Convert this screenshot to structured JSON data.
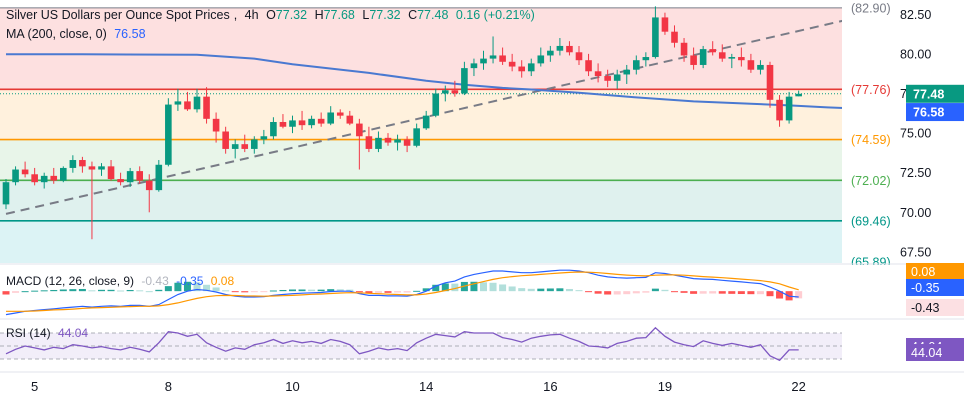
{
  "chart_data": {
    "type": "candlestick",
    "title": "Silver US Dollars per Ounce Spot Prices",
    "timeframe": "4h",
    "ohlc_header": {
      "o_label": "O",
      "o": "77.32",
      "h_label": "H",
      "h": "77.68",
      "l_label": "L",
      "l": "77.32",
      "c_label": "C",
      "c": "77.48",
      "change": "0.16 (+0.21%)"
    },
    "price_axis": {
      "ticks": [
        "82.50",
        "80.00",
        "77.50",
        "75.00",
        "72.50",
        "70.00",
        "67.50"
      ],
      "ylim": [
        66.8,
        83.4
      ]
    },
    "x_ticks": [
      "5",
      "8",
      "10",
      "14",
      "16",
      "19",
      "22"
    ],
    "levels": [
      {
        "label": "(82.90)",
        "value": 82.9,
        "color": "#787b86"
      },
      {
        "label": "(77.76)",
        "value": 77.76,
        "color": "#e53935"
      },
      {
        "label": "(74.59)",
        "value": 74.59,
        "color": "#ff9800"
      },
      {
        "label": "(72.02)",
        "value": 72.02,
        "color": "#4caf50"
      },
      {
        "label": "(69.46)",
        "value": 69.46,
        "color": "#009688"
      },
      {
        "label": "(65.89)",
        "value": 65.89,
        "color": "#009688"
      }
    ],
    "zones": [
      {
        "from": 77.76,
        "to": 82.9,
        "color": "#fde0e0"
      },
      {
        "from": 74.59,
        "to": 77.76,
        "color": "#fff1dd"
      },
      {
        "from": 72.02,
        "to": 74.59,
        "color": "#e8f5e9"
      },
      {
        "from": 69.46,
        "to": 72.02,
        "color": "#dff1ee"
      },
      {
        "from": 65.89,
        "to": 69.46,
        "color": "#dcf3f5"
      }
    ],
    "current_price": {
      "value": 77.48,
      "label": "77.48",
      "color": "#089981"
    },
    "moving_average": {
      "label": "MA (200, close, 0)",
      "value_label": "76.58",
      "value": 76.58,
      "color": "#4a79d1",
      "points": [
        [
          0,
          79.98
        ],
        [
          8,
          79.97
        ],
        [
          20,
          79.95
        ],
        [
          26,
          79.7
        ],
        [
          30,
          79.35
        ],
        [
          38,
          78.8
        ],
        [
          44,
          78.3
        ],
        [
          48,
          78.05
        ],
        [
          52,
          77.85
        ],
        [
          55,
          77.75
        ],
        [
          60,
          77.55
        ],
        [
          66,
          77.25
        ],
        [
          72,
          77.0
        ],
        [
          78,
          76.85
        ],
        [
          82,
          76.75
        ],
        [
          86,
          76.62
        ],
        [
          88,
          76.58
        ]
      ]
    },
    "trendline": {
      "color": "#787b86",
      "points": [
        [
          0,
          69.9
        ],
        [
          92,
          82.7
        ]
      ]
    },
    "candles": [
      [
        70.5,
        72.1,
        70.2,
        71.9
      ],
      [
        71.9,
        72.9,
        71.7,
        72.7
      ],
      [
        72.7,
        73.2,
        72.2,
        72.4
      ],
      [
        72.4,
        72.8,
        71.7,
        71.9
      ],
      [
        71.9,
        72.5,
        71.5,
        72.3
      ],
      [
        72.3,
        72.8,
        71.8,
        72.0
      ],
      [
        72.0,
        72.9,
        71.9,
        72.8
      ],
      [
        72.8,
        73.6,
        72.5,
        73.3
      ],
      [
        73.3,
        73.5,
        72.5,
        72.9
      ],
      [
        72.9,
        73.2,
        68.3,
        72.7
      ],
      [
        72.7,
        73.1,
        72.3,
        72.9
      ],
      [
        72.9,
        73.3,
        72.0,
        72.1
      ],
      [
        72.1,
        72.5,
        71.7,
        71.9
      ],
      [
        71.9,
        72.8,
        71.6,
        72.6
      ],
      [
        72.6,
        72.9,
        71.8,
        72.0
      ],
      [
        72.0,
        72.4,
        70.0,
        71.4
      ],
      [
        71.4,
        73.3,
        71.3,
        73.0
      ],
      [
        73.0,
        77.2,
        72.9,
        76.8
      ],
      [
        76.8,
        77.8,
        76.4,
        77.0
      ],
      [
        77.0,
        77.6,
        76.4,
        76.5
      ],
      [
        76.5,
        77.8,
        76.3,
        77.3
      ],
      [
        77.3,
        77.9,
        75.6,
        75.9
      ],
      [
        75.9,
        76.3,
        74.4,
        75.1
      ],
      [
        75.1,
        75.4,
        73.7,
        74.0
      ],
      [
        74.0,
        74.6,
        73.4,
        74.3
      ],
      [
        74.3,
        74.9,
        73.8,
        74.0
      ],
      [
        74.0,
        74.8,
        73.7,
        74.6
      ],
      [
        74.6,
        75.2,
        74.3,
        74.8
      ],
      [
        74.8,
        76.0,
        74.6,
        75.7
      ],
      [
        75.7,
        76.2,
        75.3,
        75.4
      ],
      [
        75.4,
        76.1,
        75.0,
        75.8
      ],
      [
        75.8,
        76.4,
        75.2,
        75.5
      ],
      [
        75.5,
        76.1,
        75.3,
        75.9
      ],
      [
        75.9,
        76.3,
        75.4,
        75.6
      ],
      [
        75.6,
        76.7,
        75.5,
        76.3
      ],
      [
        76.3,
        76.5,
        75.9,
        76.1
      ],
      [
        76.1,
        76.4,
        75.5,
        75.6
      ],
      [
        75.6,
        75.9,
        72.7,
        74.8
      ],
      [
        74.8,
        75.4,
        73.8,
        74.0
      ],
      [
        74.0,
        75.1,
        73.8,
        74.7
      ],
      [
        74.7,
        75.0,
        74.2,
        74.4
      ],
      [
        74.4,
        74.9,
        73.9,
        74.6
      ],
      [
        74.6,
        74.8,
        73.8,
        74.2
      ],
      [
        74.2,
        75.6,
        74.1,
        75.3
      ],
      [
        75.3,
        76.4,
        75.2,
        76.1
      ],
      [
        76.1,
        77.8,
        76.0,
        77.5
      ],
      [
        77.5,
        78.0,
        77.0,
        77.7
      ],
      [
        77.7,
        78.3,
        77.3,
        77.5
      ],
      [
        77.5,
        79.5,
        77.4,
        79.1
      ],
      [
        79.1,
        79.7,
        78.6,
        79.4
      ],
      [
        79.4,
        80.2,
        79.0,
        79.7
      ],
      [
        79.7,
        81.1,
        79.4,
        79.9
      ],
      [
        79.9,
        80.4,
        79.3,
        79.5
      ],
      [
        79.5,
        80.0,
        78.9,
        79.2
      ],
      [
        79.2,
        79.6,
        78.5,
        78.9
      ],
      [
        78.9,
        79.7,
        78.6,
        79.4
      ],
      [
        79.4,
        80.4,
        79.2,
        79.9
      ],
      [
        79.9,
        80.5,
        79.5,
        80.2
      ],
      [
        80.2,
        81.0,
        79.9,
        80.5
      ],
      [
        80.5,
        80.8,
        79.9,
        80.1
      ],
      [
        80.1,
        80.5,
        79.3,
        79.6
      ],
      [
        79.6,
        80.0,
        78.6,
        78.9
      ],
      [
        78.9,
        79.4,
        78.2,
        78.6
      ],
      [
        78.6,
        79.0,
        77.9,
        78.3
      ],
      [
        78.3,
        79.0,
        77.8,
        78.7
      ],
      [
        78.7,
        79.3,
        78.1,
        79.0
      ],
      [
        79.0,
        79.9,
        78.7,
        79.6
      ],
      [
        79.6,
        80.1,
        79.2,
        79.8
      ],
      [
        79.8,
        83.0,
        79.7,
        82.3
      ],
      [
        82.3,
        82.6,
        81.2,
        81.4
      ],
      [
        81.4,
        81.8,
        80.4,
        80.7
      ],
      [
        80.7,
        81.0,
        79.5,
        79.9
      ],
      [
        79.9,
        80.4,
        79.0,
        79.3
      ],
      [
        79.3,
        80.5,
        79.1,
        80.3
      ],
      [
        80.3,
        80.8,
        79.9,
        80.1
      ],
      [
        80.1,
        80.6,
        79.5,
        79.7
      ],
      [
        79.7,
        80.0,
        79.1,
        79.8
      ],
      [
        79.8,
        80.4,
        79.2,
        79.6
      ],
      [
        79.6,
        80.0,
        78.8,
        79.0
      ],
      [
        79.0,
        79.6,
        78.7,
        79.3
      ],
      [
        79.3,
        79.5,
        76.6,
        77.1
      ],
      [
        77.1,
        77.4,
        75.4,
        75.8
      ],
      [
        75.8,
        77.6,
        75.6,
        77.3
      ],
      [
        77.32,
        77.68,
        77.32,
        77.48
      ]
    ],
    "macd": {
      "label": "MACD (12, 26, close, 9)",
      "values_label": [
        "-0.43",
        "-0.35",
        "0.08"
      ],
      "axis_labels": [
        {
          "text": "0.08",
          "color": "#ff9800"
        },
        {
          "text": "-0.35",
          "color": "#2962ff"
        },
        {
          "text": "-0.43",
          "color": "#f23645"
        }
      ],
      "macd_line": [
        -1.4,
        -1.3,
        -1.2,
        -1.15,
        -1.1,
        -1.05,
        -1.0,
        -0.95,
        -0.9,
        -0.95,
        -0.9,
        -0.88,
        -0.9,
        -0.85,
        -0.85,
        -0.9,
        -0.8,
        -0.5,
        -0.2,
        0.0,
        0.1,
        0.05,
        -0.05,
        -0.2,
        -0.3,
        -0.35,
        -0.35,
        -0.33,
        -0.25,
        -0.2,
        -0.15,
        -0.12,
        -0.1,
        -0.08,
        -0.02,
        0.0,
        0.0,
        -0.15,
        -0.25,
        -0.25,
        -0.28,
        -0.28,
        -0.3,
        -0.2,
        0.0,
        0.3,
        0.5,
        0.6,
        0.85,
        1.0,
        1.1,
        1.2,
        1.2,
        1.15,
        1.1,
        1.1,
        1.15,
        1.2,
        1.25,
        1.25,
        1.2,
        1.1,
        0.95,
        0.85,
        0.8,
        0.78,
        0.8,
        0.82,
        1.1,
        1.05,
        0.95,
        0.85,
        0.75,
        0.72,
        0.7,
        0.65,
        0.6,
        0.55,
        0.5,
        0.45,
        0.25,
        0.0,
        -0.3,
        -0.35
      ],
      "signal_line": [
        -1.2,
        -1.2,
        -1.2,
        -1.18,
        -1.15,
        -1.12,
        -1.1,
        -1.07,
        -1.03,
        -1.0,
        -0.98,
        -0.96,
        -0.94,
        -0.92,
        -0.9,
        -0.9,
        -0.88,
        -0.8,
        -0.7,
        -0.56,
        -0.43,
        -0.33,
        -0.27,
        -0.25,
        -0.26,
        -0.28,
        -0.29,
        -0.3,
        -0.29,
        -0.27,
        -0.25,
        -0.22,
        -0.19,
        -0.17,
        -0.14,
        -0.11,
        -0.09,
        -0.1,
        -0.13,
        -0.15,
        -0.18,
        -0.2,
        -0.22,
        -0.22,
        -0.17,
        -0.08,
        0.04,
        0.15,
        0.3,
        0.44,
        0.57,
        0.7,
        0.8,
        0.87,
        0.92,
        0.96,
        1.0,
        1.04,
        1.08,
        1.12,
        1.14,
        1.13,
        1.1,
        1.05,
        1.0,
        0.96,
        0.93,
        0.91,
        0.95,
        0.97,
        0.97,
        0.95,
        0.91,
        0.87,
        0.84,
        0.8,
        0.76,
        0.72,
        0.68,
        0.63,
        0.55,
        0.44,
        0.25,
        0.08
      ],
      "ylim": [
        -1.6,
        1.5
      ]
    },
    "rsi": {
      "label": "RSI (14)",
      "value_label": "44.04",
      "axis_labels": [
        "44.04",
        "44.04"
      ],
      "values": [
        38,
        45,
        50,
        47,
        44,
        48,
        46,
        52,
        50,
        47,
        49,
        46,
        44,
        48,
        45,
        41,
        55,
        72,
        70,
        65,
        68,
        55,
        48,
        42,
        47,
        45,
        52,
        55,
        60,
        54,
        58,
        55,
        57,
        54,
        60,
        57,
        52,
        38,
        42,
        47,
        44,
        46,
        43,
        55,
        62,
        68,
        66,
        64,
        72,
        70,
        70,
        70,
        63,
        60,
        56,
        62,
        65,
        67,
        68,
        62,
        57,
        50,
        49,
        47,
        54,
        57,
        62,
        63,
        78,
        65,
        56,
        52,
        49,
        58,
        54,
        51,
        54,
        51,
        48,
        52,
        35,
        28,
        44,
        44
      ],
      "ylim": [
        10,
        90
      ]
    }
  }
}
